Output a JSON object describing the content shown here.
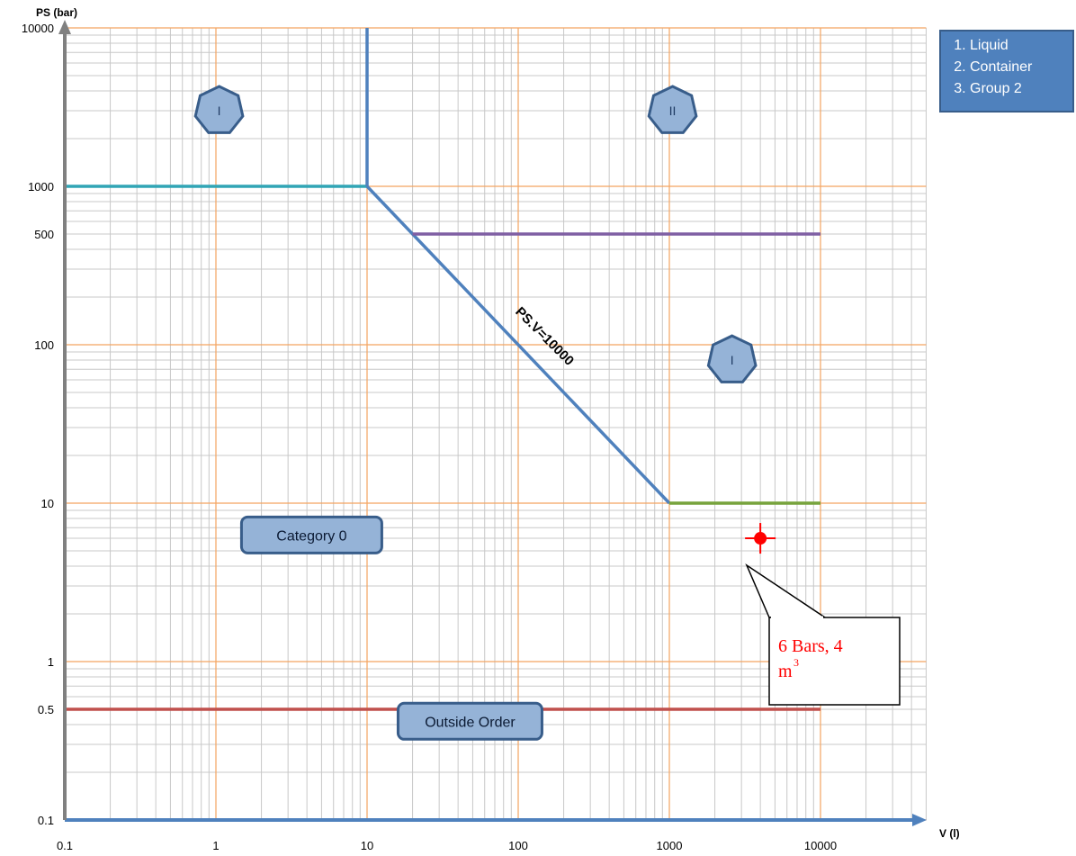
{
  "chart_data": {
    "type": "line",
    "title": "",
    "xlabel": "V (l)",
    "ylabel": "PS (bar)",
    "x_scale": "log",
    "y_scale": "log",
    "xlim": [
      0.1,
      50000
    ],
    "ylim": [
      0.1,
      10000
    ],
    "x_ticks": [
      {
        "value": 0.1,
        "label": "0.1"
      },
      {
        "value": 1,
        "label": "1"
      },
      {
        "value": 10,
        "label": "10"
      },
      {
        "value": 100,
        "label": "100"
      },
      {
        "value": 1000,
        "label": "1000"
      },
      {
        "value": 10000,
        "label": "10000"
      }
    ],
    "y_ticks": [
      {
        "value": 0.1,
        "label": "0.1"
      },
      {
        "value": 0.5,
        "label": "0.5"
      },
      {
        "value": 1,
        "label": "1"
      },
      {
        "value": 10,
        "label": "10"
      },
      {
        "value": 100,
        "label": "100"
      },
      {
        "value": 500,
        "label": "500"
      },
      {
        "value": 1000,
        "label": "1000"
      },
      {
        "value": 10000,
        "label": "10000"
      }
    ],
    "grid": true,
    "colors": {
      "major_grid": "#f4a460",
      "minor_grid": "#c8c8c8",
      "axis": "#4f81bd",
      "y_axis": "#808080"
    },
    "series": [
      {
        "points": [
          [
            0.1,
            1000
          ],
          [
            10,
            1000
          ]
        ],
        "color": "#31a5b5"
      },
      {
        "points": [
          [
            10,
            1000
          ],
          [
            10,
            10000
          ]
        ],
        "color": "#4f81bd"
      },
      {
        "points": [
          [
            10,
            1000
          ],
          [
            1000,
            10
          ]
        ],
        "color": "#4f81bd"
      },
      {
        "points": [
          [
            20,
            500
          ],
          [
            10000,
            500
          ]
        ],
        "color": "#7f5fa3"
      },
      {
        "points": [
          [
            1000,
            10
          ],
          [
            10000,
            10
          ]
        ],
        "color": "#77a33c"
      },
      {
        "points": [
          [
            0.1,
            0.5
          ],
          [
            10000,
            0.5
          ]
        ],
        "color": "#c0504d"
      }
    ],
    "annotations": [
      {
        "text": "PS.V=10000",
        "x": 100,
        "y": 100,
        "rotation_deg": 45
      },
      {
        "text": "I",
        "x": 1.05,
        "y": 3000,
        "shape": "heptagon"
      },
      {
        "text": "II",
        "x": 1050,
        "y": 3000,
        "shape": "heptagon"
      },
      {
        "text": "I",
        "x": 2600,
        "y": 80,
        "shape": "heptagon"
      },
      {
        "text": "Category 0",
        "x": 4.3,
        "y": 6.3,
        "shape": "rounded-box"
      },
      {
        "text": "Outside Order",
        "x": 48,
        "y": 0.42,
        "shape": "rounded-box"
      }
    ],
    "marker": {
      "x": 4000,
      "y": 6,
      "color": "#ff0000"
    },
    "callout": {
      "text_main": "6 Bars, 4",
      "text_unit": "m",
      "text_sup": "3"
    },
    "legend": {
      "position": "top-right",
      "items": [
        "Liquid",
        "Container",
        "Group 2"
      ]
    }
  }
}
